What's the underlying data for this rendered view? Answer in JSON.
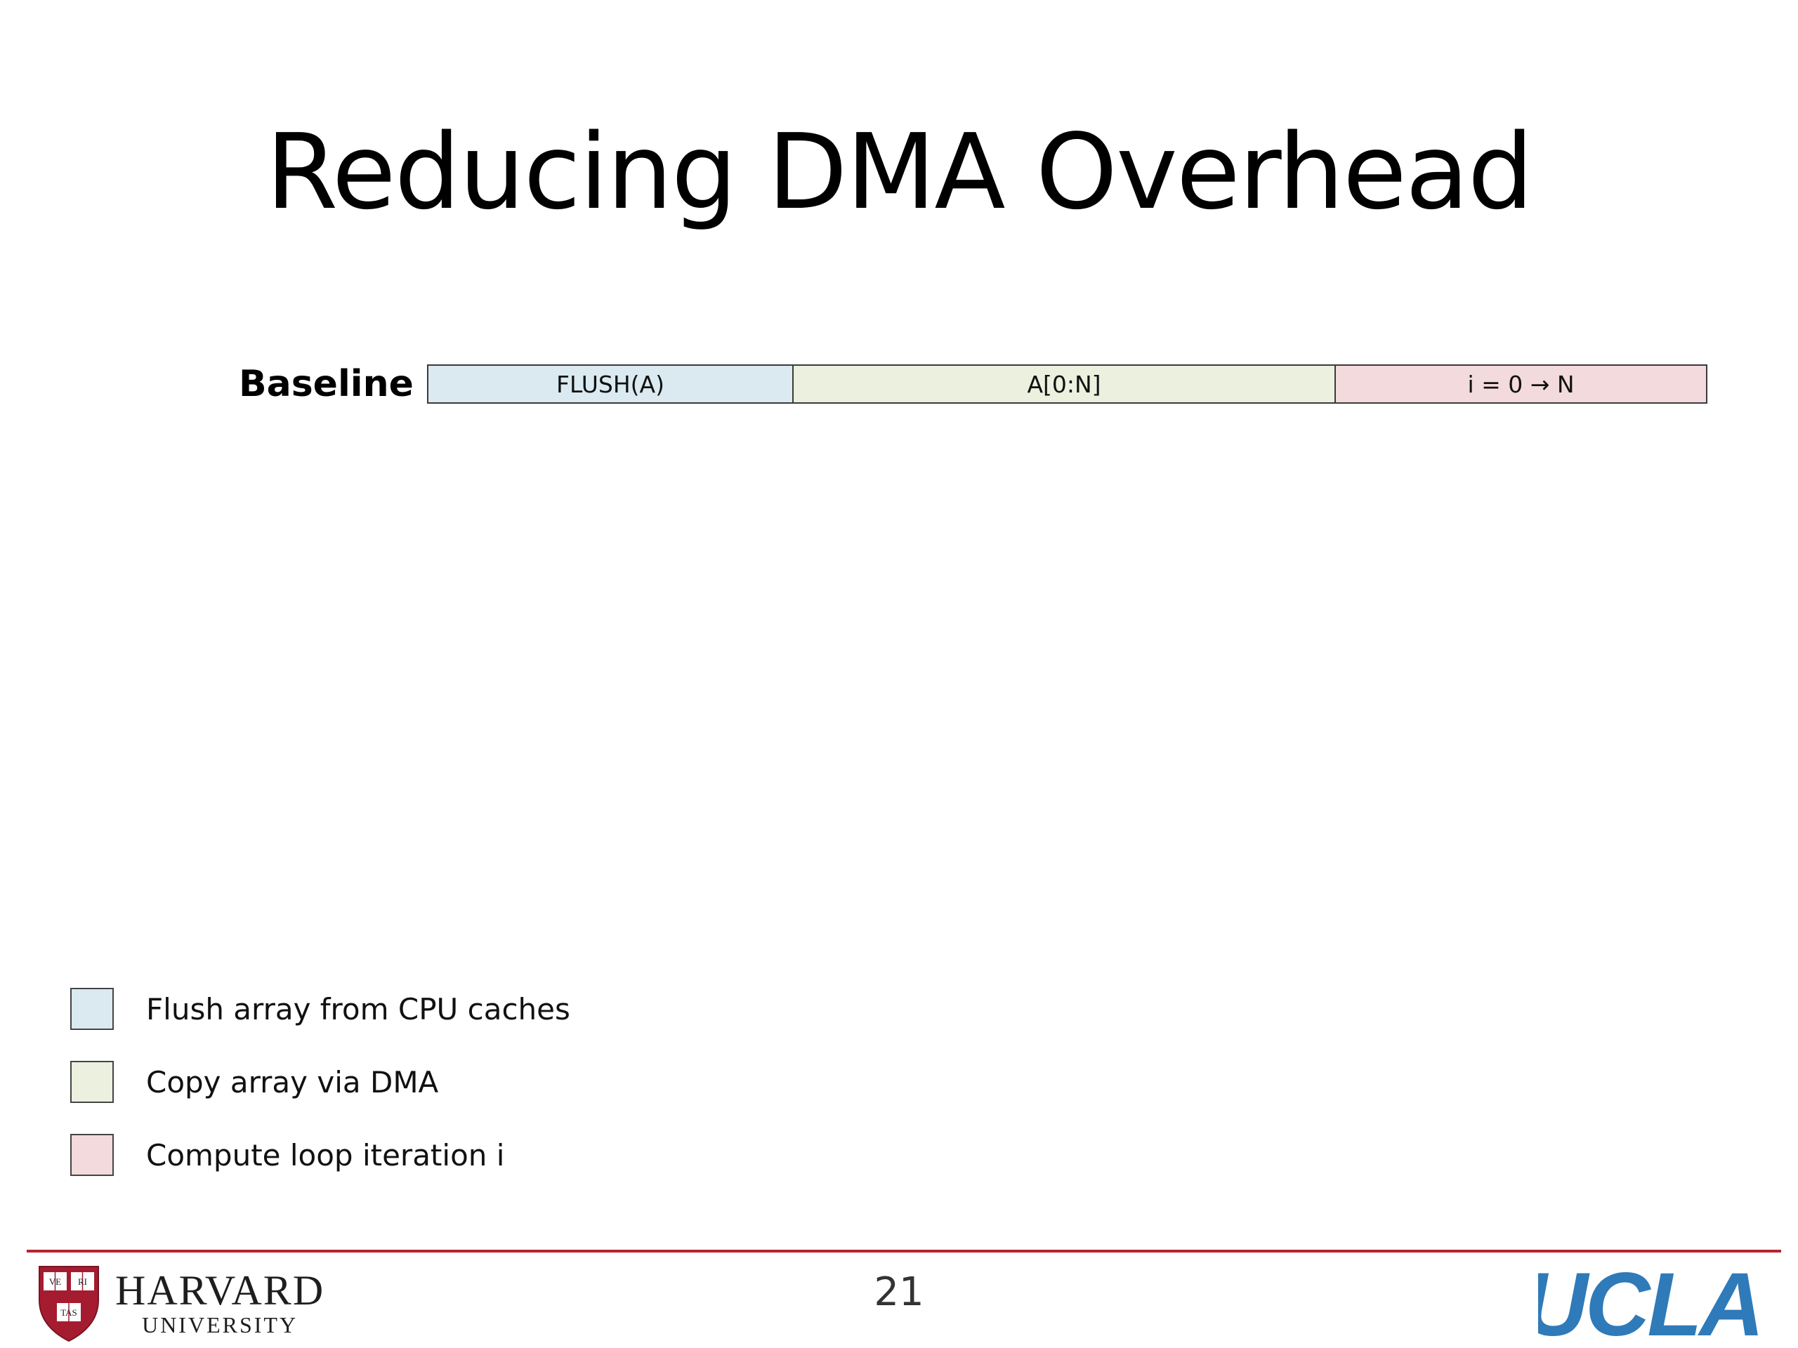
{
  "slide": {
    "title": "Reducing DMA Overhead",
    "page_number": "21"
  },
  "timeline": {
    "row_label": "Baseline",
    "segments": [
      {
        "label": "FLUSH(A)",
        "color": "#dbeaf1",
        "kind": "flush"
      },
      {
        "label": "A[0:N]",
        "color": "#ebf0df",
        "kind": "dma-copy"
      },
      {
        "label": "i = 0 → N",
        "color": "#f3dadc",
        "kind": "compute"
      }
    ]
  },
  "legend": [
    {
      "label": "Flush array from CPU caches",
      "color": "#dbeaf1"
    },
    {
      "label": "Copy array via DMA",
      "color": "#ebf0df"
    },
    {
      "label": "Compute loop iteration i",
      "color": "#f3dadc"
    }
  ],
  "footer": {
    "left_logo": {
      "name": "HARVARD",
      "sub": "UNIVERSITY",
      "shield_text": [
        "VE",
        "RI",
        "TAS"
      ]
    },
    "right_logo": {
      "text": "UCLA",
      "color": "#2f7ab9"
    },
    "rule_color": "#b5252f"
  }
}
